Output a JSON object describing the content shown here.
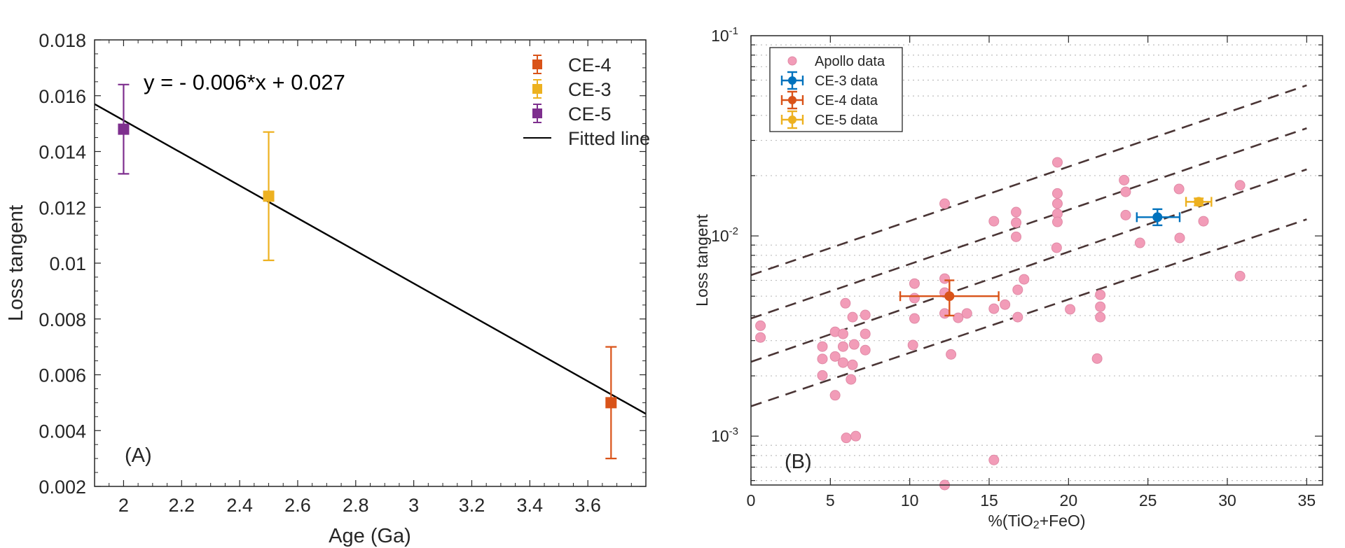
{
  "chart_data": [
    {
      "id": "A",
      "type": "scatter",
      "panel_label": "(A)",
      "title": "",
      "xlabel": "Age (Ga)",
      "ylabel": "Loss tangent",
      "xlim": [
        1.9,
        3.8
      ],
      "ylim": [
        0.002,
        0.018
      ],
      "xticks": [
        2,
        2.2,
        2.4,
        2.6,
        2.8,
        3,
        3.2,
        3.4,
        3.6
      ],
      "xtick_labels": [
        "2",
        "2.2",
        "2.4",
        "2.6",
        "2.8",
        "3",
        "3.2",
        "3.4",
        "3.6"
      ],
      "yticks": [
        0.002,
        0.004,
        0.006,
        0.008,
        0.01,
        0.012,
        0.014,
        0.016,
        0.018
      ],
      "ytick_labels": [
        "0.002",
        "0.004",
        "0.006",
        "0.008",
        "0.01",
        "0.012",
        "0.014",
        "0.016",
        "0.018"
      ],
      "grid": false,
      "annotation": "y = - 0.006*x + 0.027",
      "legend_position": "top-right",
      "series": [
        {
          "name": "CE-4",
          "color": "#D95319",
          "marker": "square",
          "x": 3.68,
          "y": 0.005,
          "y_err_low": 0.003,
          "y_err_high": 0.007
        },
        {
          "name": "CE-3",
          "color": "#EDB120",
          "marker": "square",
          "x": 2.5,
          "y": 0.0124,
          "y_err_low": 0.0101,
          "y_err_high": 0.0147
        },
        {
          "name": "CE-5",
          "color": "#7E2F8E",
          "marker": "square",
          "x": 2.0,
          "y": 0.0148,
          "y_err_low": 0.0132,
          "y_err_high": 0.0164
        }
      ],
      "fitted_line": {
        "name": "Fitted line",
        "color": "#000000",
        "x": [
          1.9,
          3.8
        ],
        "y": [
          0.0157,
          0.0046
        ]
      }
    },
    {
      "id": "B",
      "type": "scatter",
      "panel_label": "(B)",
      "title": "",
      "xlabel_parts": [
        "%(TiO",
        "2",
        "+FeO)"
      ],
      "ylabel": "Loss tangent",
      "yscale": "log",
      "xlim": [
        0,
        36
      ],
      "ylim": [
        0.00057,
        0.1
      ],
      "xticks": [
        0,
        5,
        10,
        15,
        20,
        25,
        30,
        35
      ],
      "xtick_labels": [
        "0",
        "5",
        "10",
        "15",
        "20",
        "25",
        "30",
        "35"
      ],
      "yticks": [
        0.001,
        0.01,
        0.1
      ],
      "ytick_bases": [
        "10",
        "10",
        "10"
      ],
      "ytick_exponents": [
        "-3",
        "-2",
        "-1"
      ],
      "grid": "dotted-horizontal-minor",
      "legend_position": "top-left",
      "legend": [
        "Apollo data",
        "CE-3 data",
        "CE-4 data",
        "CE-5 data"
      ],
      "apollo": {
        "name": "Apollo data",
        "color": "#F29CB8",
        "points": [
          [
            0.6,
            0.00356
          ],
          [
            0.6,
            0.00311
          ],
          [
            4.5,
            0.0028
          ],
          [
            4.5,
            0.00243
          ],
          [
            4.5,
            0.00201
          ],
          [
            5.3,
            0.00332
          ],
          [
            5.3,
            0.0025
          ],
          [
            5.3,
            0.0016
          ],
          [
            5.8,
            0.00324
          ],
          [
            5.8,
            0.0028
          ],
          [
            5.8,
            0.00233
          ],
          [
            5.95,
            0.00461
          ],
          [
            6.0,
            0.00098
          ],
          [
            6.6,
            0.001
          ],
          [
            6.4,
            0.00393
          ],
          [
            6.5,
            0.00287
          ],
          [
            6.4,
            0.00227
          ],
          [
            6.3,
            0.00192
          ],
          [
            7.2,
            0.00403
          ],
          [
            7.2,
            0.00324
          ],
          [
            7.2,
            0.00269
          ],
          [
            10.3,
            0.00578
          ],
          [
            10.3,
            0.00489
          ],
          [
            10.3,
            0.00387
          ],
          [
            10.2,
            0.00285
          ],
          [
            12.2,
            0.01449
          ],
          [
            12.2,
            0.00612
          ],
          [
            12.2,
            0.00521
          ],
          [
            12.2,
            0.0041
          ],
          [
            12.2,
            0.00057
          ],
          [
            12.6,
            0.00256
          ],
          [
            13.05,
            0.0039
          ],
          [
            13.6,
            0.0041
          ],
          [
            15.3,
            0.01184
          ],
          [
            15.3,
            0.00433
          ],
          [
            15.3,
            0.00076
          ],
          [
            16.0,
            0.00454
          ],
          [
            16.7,
            0.01315
          ],
          [
            16.7,
            0.01165
          ],
          [
            16.7,
            0.0099
          ],
          [
            16.8,
            0.00538
          ],
          [
            17.2,
            0.00607
          ],
          [
            16.8,
            0.00393
          ],
          [
            19.3,
            0.0233
          ],
          [
            19.3,
            0.0163
          ],
          [
            19.3,
            0.0145
          ],
          [
            19.3,
            0.0129
          ],
          [
            19.3,
            0.01175
          ],
          [
            19.25,
            0.00873
          ],
          [
            20.1,
            0.0043
          ],
          [
            21.8,
            0.00244
          ],
          [
            22.0,
            0.00508
          ],
          [
            22.0,
            0.00443
          ],
          [
            22.0,
            0.00393
          ],
          [
            23.5,
            0.019
          ],
          [
            23.6,
            0.0166
          ],
          [
            23.6,
            0.0127
          ],
          [
            24.5,
            0.00923
          ],
          [
            26.96,
            0.01715
          ],
          [
            27.0,
            0.00977
          ],
          [
            28.5,
            0.01184
          ],
          [
            30.8,
            0.0179
          ],
          [
            30.8,
            0.0063
          ]
        ]
      },
      "series": [
        {
          "name": "CE-3 data",
          "color": "#0072BD",
          "x": 25.6,
          "y": 0.0124,
          "x_err": [
            24.3,
            27.0
          ],
          "y_err": [
            0.0113,
            0.0136
          ]
        },
        {
          "name": "CE-4 data",
          "color": "#D95319",
          "x": 12.5,
          "y": 0.005,
          "x_err": [
            9.4,
            15.6
          ],
          "y_err": [
            0.004,
            0.006
          ]
        },
        {
          "name": "CE-5 data",
          "color": "#EDB120",
          "x": 28.2,
          "y": 0.0148,
          "x_err": [
            27.4,
            29.0
          ],
          "y_err": [
            0.0142,
            0.0154
          ]
        }
      ],
      "dashed_lines": {
        "color": "#4A3535",
        "x": [
          0,
          35
        ],
        "lines": [
          [
            0.00637,
            0.0565
          ],
          [
            0.00387,
            0.0345
          ],
          [
            0.00235,
            0.0215
          ],
          [
            0.00141,
            0.0121
          ]
        ]
      }
    }
  ]
}
